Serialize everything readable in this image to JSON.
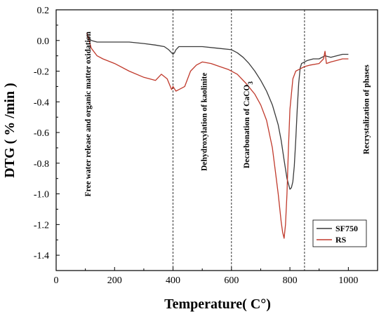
{
  "chart_data": {
    "type": "line",
    "title": "",
    "xlabel": "Temperature( C°)",
    "ylabel": "DTG ( % /min )",
    "xlim": [
      0,
      1100
    ],
    "ylim": [
      -1.5,
      0.2
    ],
    "x_ticks": [
      0,
      200,
      400,
      600,
      800,
      1000
    ],
    "y_ticks": [
      0.2,
      0.0,
      -0.2,
      -0.4,
      -0.6,
      -0.8,
      -1.0,
      -1.2,
      -1.4
    ],
    "x_tick_labels": [
      "0",
      "200",
      "400",
      "600",
      "800",
      "1000"
    ],
    "y_tick_labels": [
      "0.2",
      "0.0",
      "-0.2",
      "-0.4",
      "-0.6",
      "-0.8",
      "-1.0",
      "-1.2",
      "-1.4"
    ],
    "grid": false,
    "legend_position": "bottom-right",
    "vertical_lines": [
      400,
      600,
      850
    ],
    "annotations": [
      {
        "text": "Free water release and organic matter oxidation",
        "x": 118,
        "y": -0.48
      },
      {
        "text": "Dehydroxylation of kaolinite",
        "x": 515,
        "y": -0.53
      },
      {
        "text": "Decarbonation of CaCO",
        "subscript": "3",
        "x": 660,
        "y": -0.55
      },
      {
        "text": "Recrystalization of phases",
        "x": 1070,
        "y": -0.45
      }
    ],
    "series": [
      {
        "name": "SF750",
        "color": "#3a3a3a",
        "x": [
          105,
          110,
          120,
          140,
          160,
          200,
          250,
          300,
          340,
          370,
          385,
          395,
          400,
          405,
          410,
          420,
          440,
          460,
          500,
          550,
          600,
          620,
          640,
          660,
          680,
          700,
          720,
          740,
          760,
          770,
          780,
          790,
          800,
          805,
          810,
          815,
          820,
          825,
          830,
          835,
          840,
          850,
          860,
          880,
          900,
          920,
          940,
          960,
          980,
          1000
        ],
        "y": [
          0.03,
          0.02,
          0.0,
          -0.01,
          -0.01,
          -0.01,
          -0.01,
          -0.02,
          -0.03,
          -0.04,
          -0.06,
          -0.08,
          -0.09,
          -0.08,
          -0.06,
          -0.04,
          -0.04,
          -0.04,
          -0.04,
          -0.05,
          -0.06,
          -0.08,
          -0.11,
          -0.15,
          -0.2,
          -0.26,
          -0.33,
          -0.42,
          -0.55,
          -0.65,
          -0.78,
          -0.9,
          -0.97,
          -0.96,
          -0.92,
          -0.82,
          -0.65,
          -0.45,
          -0.28,
          -0.18,
          -0.15,
          -0.14,
          -0.13,
          -0.12,
          -0.12,
          -0.1,
          -0.11,
          -0.1,
          -0.09,
          -0.09
        ]
      },
      {
        "name": "RS",
        "color": "#c0392b",
        "x": [
          105,
          110,
          120,
          140,
          160,
          200,
          250,
          300,
          340,
          360,
          380,
          395,
          400,
          410,
          420,
          440,
          460,
          480,
          500,
          530,
          560,
          590,
          620,
          650,
          680,
          700,
          720,
          740,
          750,
          760,
          770,
          775,
          780,
          785,
          790,
          795,
          800,
          810,
          820,
          830,
          840,
          850,
          870,
          900,
          915,
          920,
          925,
          940,
          960,
          980,
          1000
        ],
        "y": [
          0.05,
          0.02,
          -0.05,
          -0.1,
          -0.12,
          -0.15,
          -0.2,
          -0.24,
          -0.26,
          -0.22,
          -0.25,
          -0.32,
          -0.3,
          -0.33,
          -0.32,
          -0.3,
          -0.2,
          -0.16,
          -0.14,
          -0.15,
          -0.17,
          -0.19,
          -0.22,
          -0.28,
          -0.35,
          -0.42,
          -0.52,
          -0.7,
          -0.85,
          -1.0,
          -1.18,
          -1.25,
          -1.29,
          -1.2,
          -1.0,
          -0.7,
          -0.45,
          -0.25,
          -0.2,
          -0.19,
          -0.18,
          -0.17,
          -0.16,
          -0.15,
          -0.12,
          -0.07,
          -0.15,
          -0.14,
          -0.13,
          -0.12,
          -0.12
        ]
      }
    ]
  }
}
